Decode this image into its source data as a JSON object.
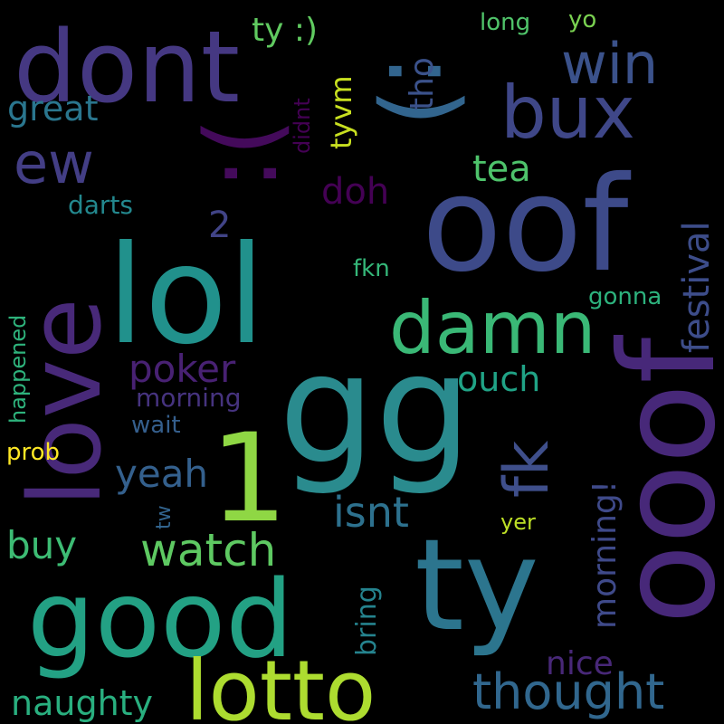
{
  "words": [
    {
      "text": "gg",
      "color": "#2a8b8e"
    },
    {
      "text": "lol",
      "color": "#21918c"
    },
    {
      "text": "ty",
      "color": "#2c758e"
    },
    {
      "text": "good",
      "color": "#23a184"
    },
    {
      "text": "oof",
      "color": "#3d4a89"
    },
    {
      "text": "ooof",
      "color": "#472879"
    },
    {
      "text": "1",
      "color": "#8fd744"
    },
    {
      "text": "love",
      "color": "#482979"
    },
    {
      "text": "dont",
      "color": "#453882"
    },
    {
      "text": ":(",
      "color": "#440a5b"
    },
    {
      "text": ":)",
      "color": "#32658e"
    },
    {
      "text": "lotto",
      "color": "#addc30"
    },
    {
      "text": "damn",
      "color": "#3ab876"
    },
    {
      "text": "bux",
      "color": "#3f4788"
    },
    {
      "text": "win",
      "color": "#3b528b"
    },
    {
      "text": "ew",
      "color": "#433e85"
    },
    {
      "text": "fk",
      "color": "#3f4f8b"
    },
    {
      "text": "thought",
      "color": "#31678e"
    },
    {
      "text": "watch",
      "color": "#5ec962"
    },
    {
      "text": "isnt",
      "color": "#2d718e"
    },
    {
      "text": "yeah",
      "color": "#34608d"
    },
    {
      "text": "poker",
      "color": "#482173"
    },
    {
      "text": "festival",
      "color": "#3d4d8a"
    },
    {
      "text": "morning!",
      "color": "#3f4a8a"
    },
    {
      "text": "buy",
      "color": "#3dbc74"
    },
    {
      "text": "naughty",
      "color": "#29af7f"
    },
    {
      "text": "ouch",
      "color": "#20a386"
    },
    {
      "text": "tea",
      "color": "#4ec36b"
    },
    {
      "text": "great",
      "color": "#2a768e"
    },
    {
      "text": "tho",
      "color": "#3b528b"
    },
    {
      "text": "ty :)",
      "color": "#60ca60"
    },
    {
      "text": "tyvm",
      "color": "#c8e020"
    },
    {
      "text": "doh",
      "color": "#440154"
    },
    {
      "text": "2",
      "color": "#414487"
    },
    {
      "text": "nice",
      "color": "#482878"
    },
    {
      "text": "bring",
      "color": "#25838e"
    },
    {
      "text": "morning",
      "color": "#46337f"
    },
    {
      "text": "wait",
      "color": "#355f8d"
    },
    {
      "text": "darts",
      "color": "#23888e"
    },
    {
      "text": "fkn",
      "color": "#35b779"
    },
    {
      "text": "gonna",
      "color": "#2db27d"
    },
    {
      "text": "happened",
      "color": "#2eb37c"
    },
    {
      "text": "prob",
      "color": "#fde725"
    },
    {
      "text": "yer",
      "color": "#bddf26"
    },
    {
      "text": "tw",
      "color": "#32648e"
    },
    {
      "text": "long",
      "color": "#50c46a"
    },
    {
      "text": "yo",
      "color": "#7ad151"
    },
    {
      "text": "didnt",
      "color": "#440154"
    }
  ]
}
